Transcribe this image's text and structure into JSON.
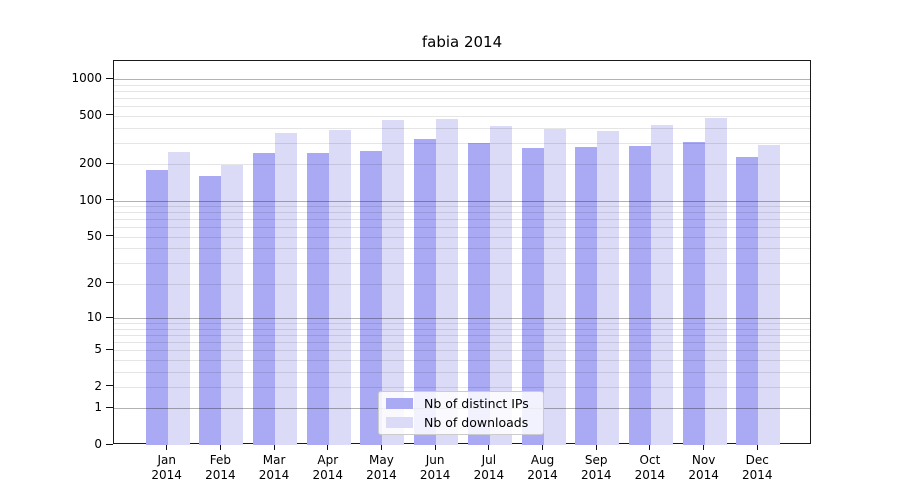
{
  "chart_data": {
    "type": "bar",
    "title": "fabia 2014",
    "categories": [
      "Jan",
      "Feb",
      "Mar",
      "Apr",
      "May",
      "Jun",
      "Jul",
      "Aug",
      "Sep",
      "Oct",
      "Nov",
      "Dec"
    ],
    "year_label": "2014",
    "series": [
      {
        "name": "Nb of distinct IPs",
        "color": "#a9a9f4",
        "values": [
          181,
          161,
          247,
          249,
          258,
          321,
          301,
          271,
          276,
          284,
          304,
          229
        ]
      },
      {
        "name": "Nb of downloads",
        "color": "#dbdbf7",
        "values": [
          252,
          197,
          364,
          382,
          461,
          469,
          413,
          388,
          373,
          425,
          482,
          291
        ]
      }
    ],
    "yscale": "log1p",
    "yticks": [
      0,
      1,
      2,
      5,
      10,
      20,
      50,
      100,
      200,
      500,
      1000
    ],
    "ylim": [
      0,
      1380
    ],
    "grid": true,
    "legend_position": "lower center",
    "major_grid_values": [
      1,
      10,
      100,
      1000
    ]
  }
}
